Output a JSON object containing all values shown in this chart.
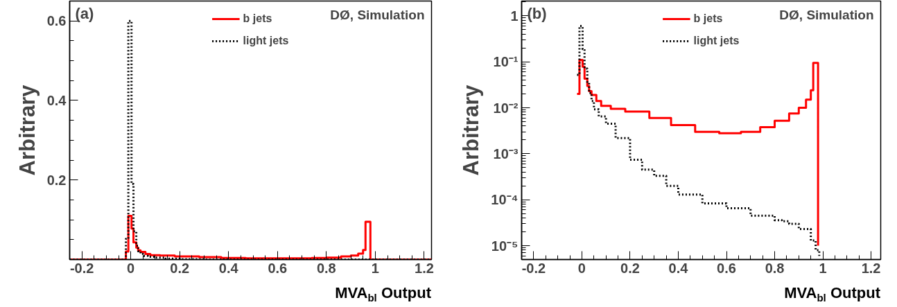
{
  "chart_data": [
    {
      "type": "step",
      "xlabel": "MVA$_{bl}$ Output",
      "ylabel": "Arbitrary",
      "annotations": [
        "(a)",
        "DØ, Simulation"
      ],
      "legend": "top",
      "grid": false,
      "xlim": [
        -0.25,
        1.23
      ],
      "xticks": [
        -0.2,
        0,
        0.2,
        0.4,
        0.6,
        0.8,
        1,
        1.2
      ],
      "ylim": [
        0,
        0.65
      ],
      "yticks": [
        0.2,
        0.4,
        0.6
      ],
      "series": [
        {
          "name": "b jets",
          "color": "#ff0000",
          "line_style": "solid",
          "x": [
            -0.25,
            -0.02,
            -0.01,
            0.003,
            0.011,
            0.0225,
            0.03,
            0.04,
            0.06,
            0.08,
            0.12,
            0.18,
            0.28,
            0.37,
            0.47,
            0.57,
            0.66,
            0.74,
            0.8,
            0.86,
            0.9,
            0.93,
            0.95,
            0.96,
            0.98,
            1.23
          ],
          "values": [
            0,
            0.02,
            0.11,
            0.078,
            0.043,
            0.03,
            0.023,
            0.019,
            0.014,
            0.011,
            0.01,
            0.008,
            0.006,
            0.004,
            0.003,
            0.003,
            0.003,
            0.004,
            0.005,
            0.008,
            0.01,
            0.015,
            0.024,
            0.095,
            0,
            0
          ]
        },
        {
          "name": "light jets",
          "color": "#000000",
          "line_style": "dotted",
          "x": [
            -0.25,
            -0.02,
            -0.01,
            0.003,
            0.011,
            0.0225,
            0.03,
            0.04,
            0.05,
            0.07,
            0.1,
            0.14,
            0.2,
            0.3,
            1.23
          ],
          "values": [
            0,
            0.052,
            0.6,
            0.19,
            0.071,
            0.035,
            0.021,
            0.014,
            0.009,
            0.007,
            0.005,
            0.002,
            0.001,
            0,
            0
          ]
        }
      ]
    },
    {
      "type": "step",
      "xlabel": "MVA$_{bl}$ Output",
      "ylabel": "Arbitrary",
      "annotations": [
        "(b)",
        "DØ, Simulation"
      ],
      "legend": "top",
      "grid": false,
      "log": true,
      "xlim": [
        -0.25,
        1.24
      ],
      "xticks": [
        -0.2,
        0,
        0.2,
        0.4,
        0.6,
        0.8,
        1,
        1.2
      ],
      "ylim": [
        5e-06,
        2.1
      ],
      "yticks": [
        {
          "value": 1e-05,
          "label": "10⁻⁵"
        },
        {
          "value": 0.0001,
          "label": "10⁻⁴"
        },
        {
          "value": 0.001,
          "label": "10⁻³"
        },
        {
          "value": 0.01,
          "label": "10⁻²"
        },
        {
          "value": 0.1,
          "label": "10⁻¹"
        },
        1
      ],
      "series": [
        {
          "name": "b jets",
          "color": "#ff0000",
          "line_style": "solid",
          "x": [
            -0.02,
            -0.01,
            0.003,
            0.011,
            0.0225,
            0.03,
            0.04,
            0.06,
            0.08,
            0.12,
            0.18,
            0.28,
            0.37,
            0.47,
            0.57,
            0.66,
            0.74,
            0.8,
            0.86,
            0.9,
            0.93,
            0.95,
            0.96,
            0.98
          ],
          "values": [
            0.02,
            0.11,
            0.078,
            0.043,
            0.03,
            0.023,
            0.019,
            0.014,
            0.011,
            0.0095,
            0.0083,
            0.006,
            0.0042,
            0.003,
            0.0028,
            0.003,
            0.0038,
            0.0052,
            0.0075,
            0.01,
            0.015,
            0.024,
            0.095,
            1e-05
          ]
        },
        {
          "name": "light jets",
          "color": "#000000",
          "line_style": "dotted",
          "x": [
            -0.02,
            -0.01,
            0.003,
            0.011,
            0.0225,
            0.03,
            0.04,
            0.05,
            0.07,
            0.1,
            0.14,
            0.2,
            0.25,
            0.3,
            0.35,
            0.4,
            0.5,
            0.6,
            0.7,
            0.8,
            0.83,
            0.86,
            0.9,
            0.95,
            0.97,
            0.985
          ],
          "values": [
            0.052,
            0.6,
            0.19,
            0.071,
            0.035,
            0.021,
            0.014,
            0.0093,
            0.0065,
            0.0045,
            0.0022,
            0.00074,
            0.00045,
            0.00033,
            0.0002,
            0.00013,
            8.3e-05,
            6.5e-05,
            4.5e-05,
            3.6e-05,
            3.4e-05,
            3e-05,
            2.3e-05,
            1.3e-05,
            8e-06,
            6e-06
          ]
        }
      ]
    }
  ]
}
